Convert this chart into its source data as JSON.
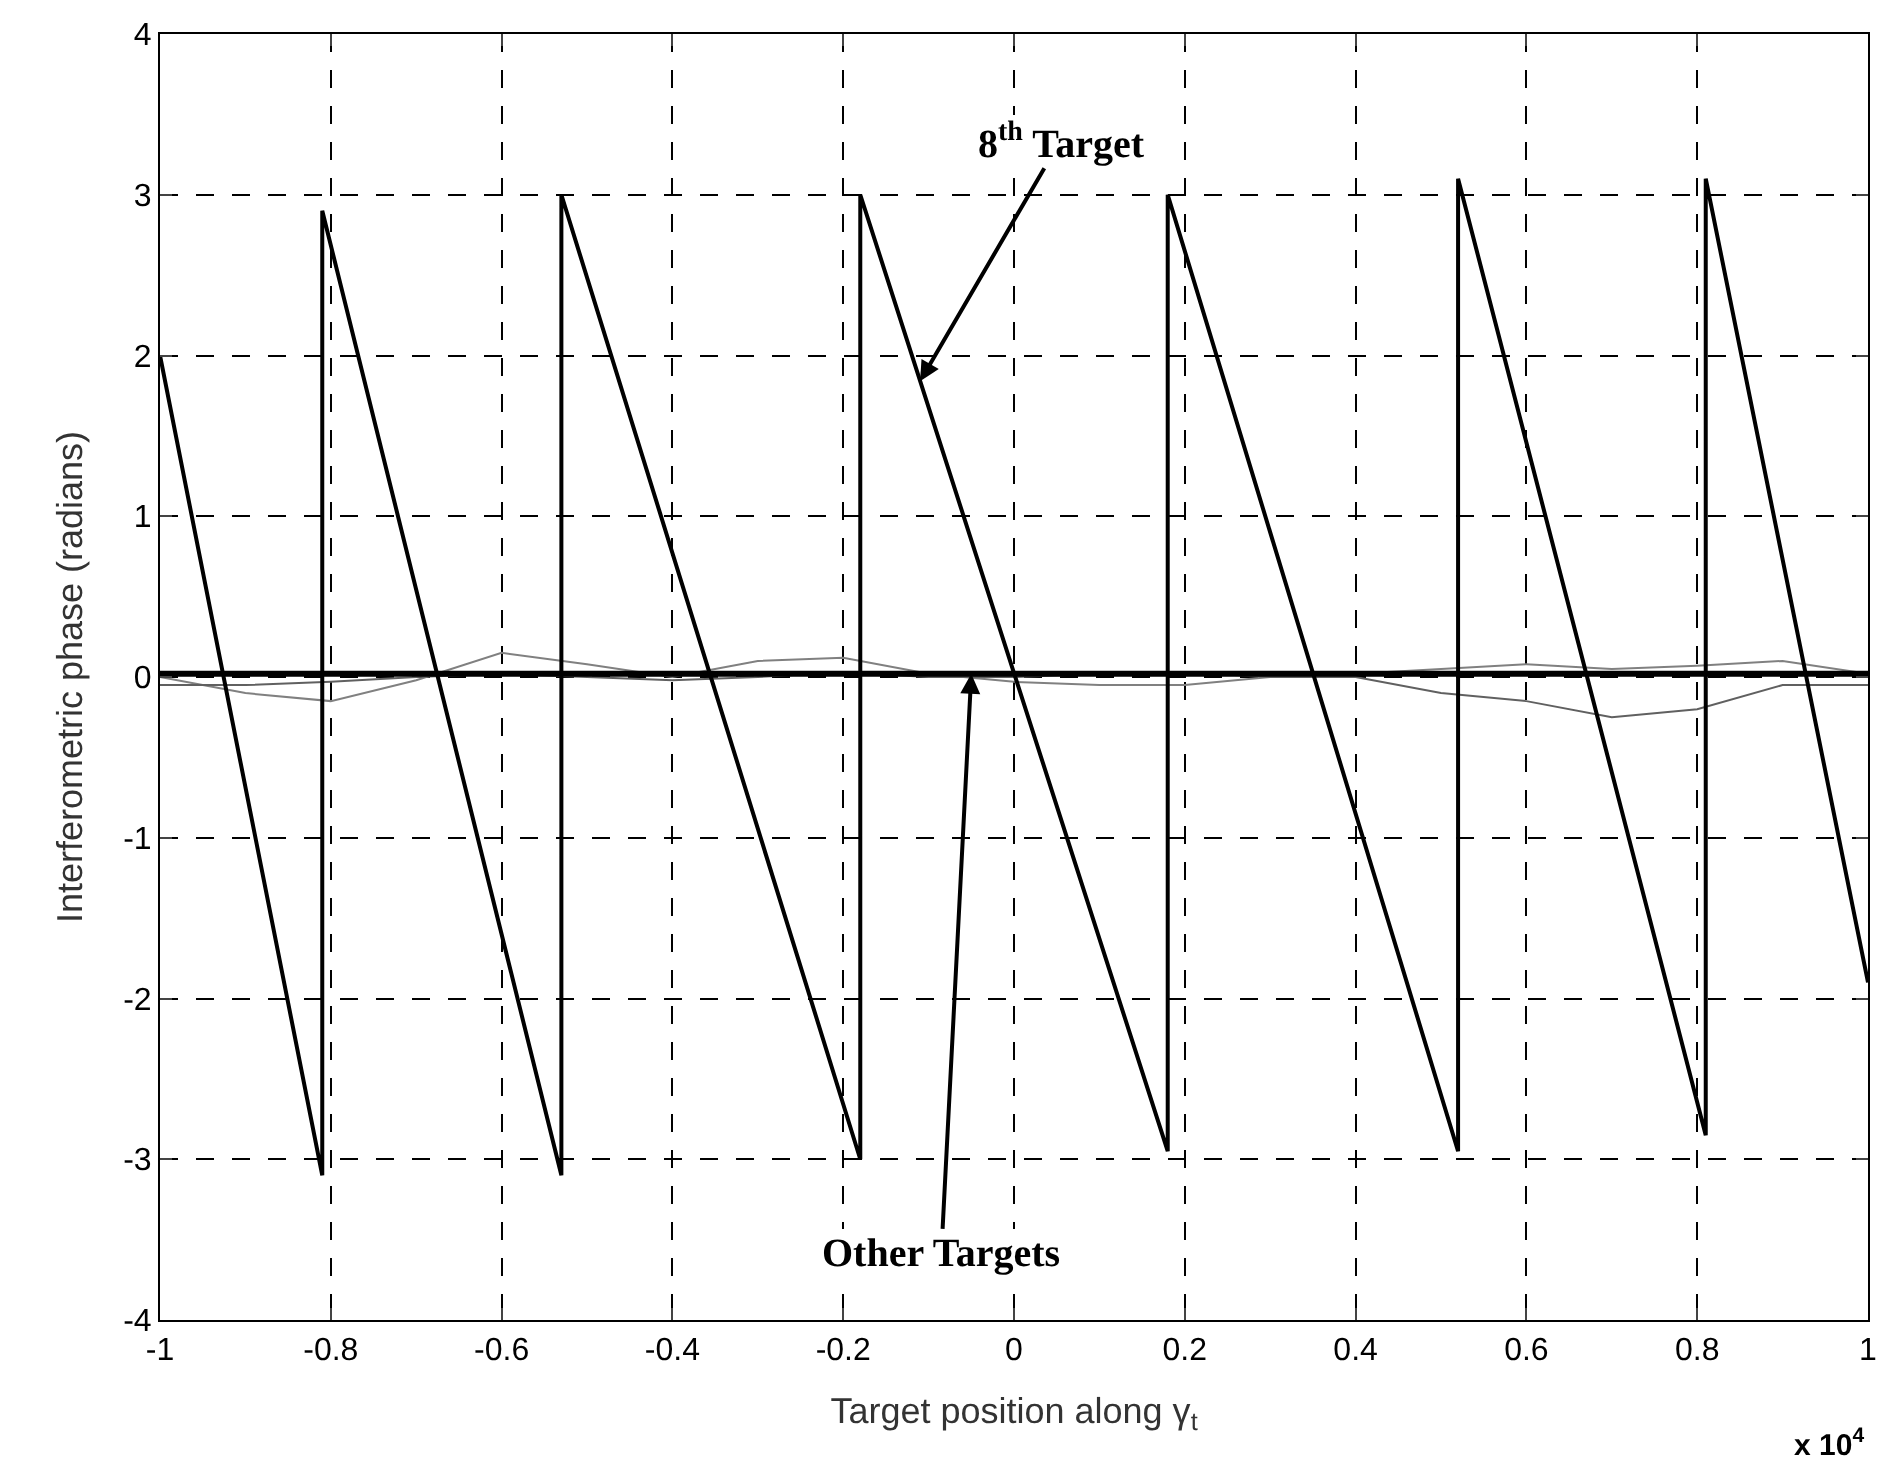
{
  "chart_data": {
    "type": "line",
    "xlabel": "Target position along γ$_{t}$",
    "ylabel": "Interferometric phase (radians)",
    "xlim": [
      -1,
      1
    ],
    "ylim": [
      -4,
      4
    ],
    "xticks": [
      -1,
      -0.8,
      -0.6,
      -0.4,
      -0.2,
      0,
      0.2,
      0.4,
      0.6,
      0.8,
      1
    ],
    "yticks": [
      -4,
      -3,
      -2,
      -1,
      0,
      1,
      2,
      3,
      4
    ],
    "grid": true,
    "line_style": "solid",
    "marker": "none",
    "series": [
      {
        "color": "#808080",
        "x": [
          -1,
          -0.9,
          -0.8,
          -0.7,
          -0.6,
          -0.5,
          -0.4,
          -0.3,
          -0.2,
          -0.1,
          0,
          0.1,
          0.2,
          0.3,
          0.4,
          0.5,
          0.6,
          0.7,
          0.8,
          0.9,
          1
        ],
        "values": [
          0,
          -0.1,
          -0.15,
          -0.02,
          0.15,
          0.08,
          0,
          0.1,
          0.12,
          0.02,
          -0.03,
          -0.05,
          -0.05,
          0,
          0.02,
          0.05,
          0.08,
          0.05,
          0.07,
          0.1,
          0.02
        ]
      },
      {
        "color": "#606060",
        "x": [
          -1,
          -0.9,
          -0.8,
          -0.7,
          -0.6,
          -0.5,
          -0.4,
          -0.3,
          -0.2,
          -0.1,
          0,
          0.1,
          0.2,
          0.3,
          0.4,
          0.5,
          0.6,
          0.7,
          0.8,
          0.9,
          1
        ],
        "values": [
          -0.05,
          -0.05,
          -0.03,
          0,
          0.02,
          0,
          -0.02,
          0,
          0.03,
          0,
          0,
          0.02,
          0.03,
          0,
          0,
          -0.1,
          -0.15,
          -0.25,
          -0.2,
          -0.05,
          -0.05
        ]
      },
      {
        "color": "#000000",
        "x": [
          -1,
          -0.5,
          0,
          0.5,
          1
        ],
        "values": [
          0.02,
          0.02,
          0.02,
          0.02,
          0.02
        ]
      },
      {
        "color": "#000000",
        "x": [
          -1,
          -0.81,
          -0.81,
          -0.53,
          -0.53,
          -0.18,
          -0.18,
          0.18,
          0.18,
          0.52,
          0.52,
          0.81,
          0.81,
          1
        ],
        "values": [
          2.0,
          -3.1,
          2.9,
          -3.1,
          3.0,
          -3.0,
          3.0,
          -2.95,
          3.0,
          -2.95,
          3.1,
          -2.85,
          3.1,
          -1.9
        ]
      }
    ],
    "annotations": [
      {
        "text": "8$^{th}$ Target",
        "x": -0.11,
        "y": 1.84
      },
      {
        "text": "Other Targets",
        "x": -0.05,
        "y": 0.02
      },
      "x 10$^{4}$"
    ]
  }
}
